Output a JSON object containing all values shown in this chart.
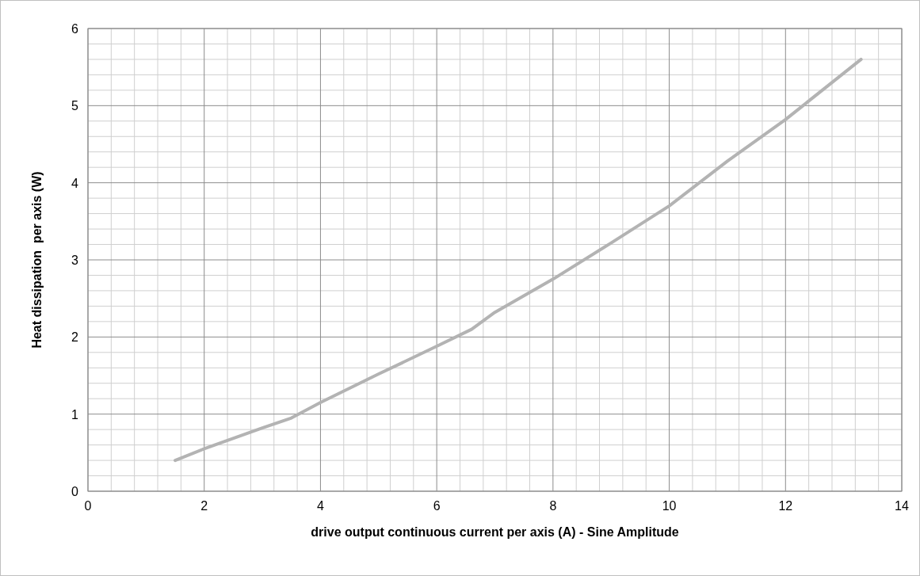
{
  "chart_data": {
    "type": "line",
    "xlabel": "drive output continuous current per axis (A) - Sine Amplitude",
    "ylabel": "Heat dissipation  per axis (W)",
    "series": [
      {
        "color": "#b3b3b3",
        "x": [
          1.5,
          2,
          3,
          3.5,
          4,
          5,
          6,
          6.6,
          7,
          8,
          9,
          10,
          11,
          12,
          13.3
        ],
        "values": [
          0.4,
          0.55,
          0.82,
          0.95,
          1.15,
          1.52,
          1.88,
          2.1,
          2.32,
          2.75,
          3.22,
          3.7,
          4.28,
          4.82,
          5.6
        ]
      }
    ],
    "xlim": [
      0,
      14
    ],
    "xticks": [
      0,
      2,
      4,
      6,
      8,
      10,
      12,
      14
    ],
    "ylim": [
      0,
      6
    ],
    "yticks": [
      0,
      1,
      2,
      3,
      4,
      5,
      6
    ],
    "grid": true,
    "marker": "none",
    "line_style": "solid"
  }
}
